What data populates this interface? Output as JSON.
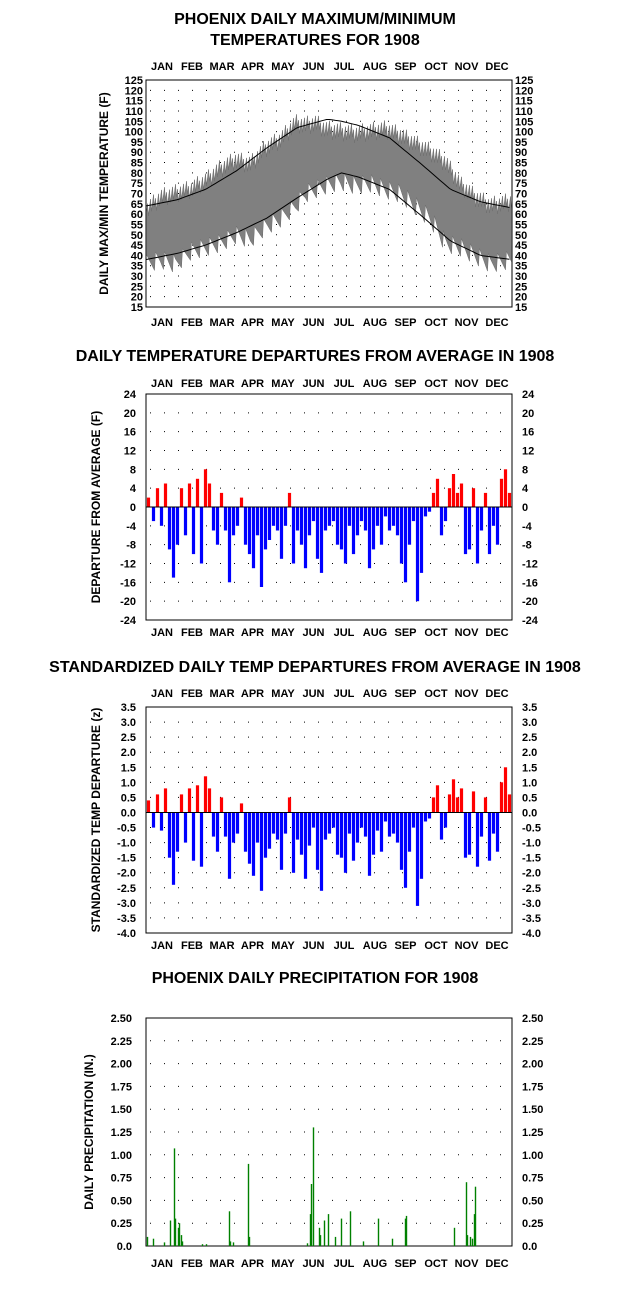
{
  "months": [
    "JAN",
    "FEB",
    "MAR",
    "APR",
    "MAY",
    "JUN",
    "JUL",
    "AUG",
    "SEP",
    "OCT",
    "NOV",
    "DEC"
  ],
  "chart_data": [
    {
      "type": "area",
      "title": "PHOENIX DAILY MAXIMUM/MINIMUM",
      "title2": "TEMPERATURES FOR 1908",
      "ylabel": "DAILY MAX/MIN TEMPERATURE (F)",
      "ylim": [
        15,
        125
      ],
      "yticks": [
        "15",
        "20",
        "25",
        "30",
        "35",
        "40",
        "45",
        "50",
        "55",
        "60",
        "65",
        "70",
        "75",
        "80",
        "85",
        "90",
        "95",
        "100",
        "105",
        "110",
        "115",
        "120",
        "125"
      ],
      "grid": true,
      "series": [
        {
          "name": "",
          "role": "normal_max",
          "x": [
            1,
            32,
            60,
            91,
            121,
            152,
            182,
            196,
            213,
            244,
            274,
            305,
            335,
            366
          ],
          "values": [
            64,
            67,
            72,
            81,
            92,
            102,
            106,
            105,
            103,
            97,
            85,
            72,
            66,
            63
          ]
        },
        {
          "name": "",
          "role": "normal_min",
          "x": [
            1,
            32,
            60,
            91,
            121,
            152,
            182,
            196,
            213,
            244,
            274,
            305,
            335,
            366
          ],
          "values": [
            38,
            41,
            45,
            51,
            58,
            68,
            77,
            80,
            78,
            72,
            60,
            47,
            40,
            38
          ]
        },
        {
          "name": "",
          "role": "daily_max_approx",
          "x": [
            1,
            15,
            30,
            45,
            60,
            75,
            90,
            105,
            120,
            135,
            150,
            160,
            170,
            180,
            195,
            210,
            225,
            240,
            255,
            270,
            285,
            300,
            315,
            330,
            345,
            366
          ],
          "values": [
            62,
            68,
            70,
            72,
            76,
            82,
            86,
            84,
            92,
            96,
            104,
            103,
            104,
            101,
            100,
            99,
            100,
            101,
            98,
            94,
            90,
            85,
            74,
            68,
            64,
            66
          ]
        },
        {
          "name": "",
          "role": "daily_min_approx",
          "x": [
            1,
            15,
            30,
            45,
            60,
            75,
            90,
            105,
            120,
            135,
            150,
            160,
            170,
            180,
            195,
            210,
            225,
            240,
            255,
            270,
            285,
            300,
            315,
            330,
            345,
            366
          ],
          "values": [
            36,
            38,
            36,
            42,
            44,
            46,
            50,
            48,
            54,
            58,
            64,
            70,
            72,
            74,
            76,
            74,
            75,
            72,
            70,
            64,
            58,
            46,
            44,
            40,
            36,
            38
          ]
        }
      ]
    },
    {
      "type": "bar",
      "title": "DAILY TEMPERATURE DEPARTURES FROM AVERAGE IN 1908",
      "ylabel": "DEPARTURE FROM AVERAGE (F)",
      "ylim": [
        -24,
        24
      ],
      "yticks": [
        "24",
        "20",
        "16",
        "12",
        "8",
        "4",
        "0",
        "-4",
        "-8",
        "-12",
        "-16",
        "-20",
        "-24"
      ],
      "grid": true,
      "x": [
        3,
        8,
        12,
        16,
        20,
        24,
        28,
        32,
        36,
        40,
        44,
        48,
        52,
        56,
        60,
        64,
        68,
        72,
        76,
        80,
        84,
        88,
        92,
        96,
        100,
        104,
        108,
        112,
        116,
        120,
        124,
        128,
        132,
        136,
        140,
        144,
        148,
        152,
        156,
        160,
        164,
        168,
        172,
        176,
        180,
        184,
        188,
        192,
        196,
        200,
        204,
        208,
        212,
        216,
        220,
        224,
        228,
        232,
        236,
        240,
        244,
        248,
        252,
        256,
        260,
        264,
        268,
        272,
        276,
        280,
        284,
        288,
        292,
        296,
        300,
        304,
        308,
        312,
        316,
        320,
        324,
        328,
        332,
        336,
        340,
        344,
        348,
        352,
        356,
        360,
        364
      ],
      "values": [
        2,
        -3,
        4,
        -4,
        5,
        -9,
        -15,
        -8,
        4,
        -6,
        5,
        -10,
        6,
        -12,
        8,
        5,
        -5,
        -8,
        3,
        -5,
        -16,
        -6,
        -4,
        2,
        -8,
        -10,
        -13,
        -6,
        -17,
        -9,
        -7,
        -4,
        -5,
        -11,
        -4,
        3,
        -12,
        -5,
        -8,
        -13,
        -6,
        -3,
        -11,
        -14,
        -5,
        -4,
        -3,
        -8,
        -9,
        -12,
        -4,
        -10,
        -6,
        -3,
        -5,
        -13,
        -9,
        -4,
        -8,
        -2,
        -5,
        -4,
        -6,
        -12,
        -16,
        -8,
        -3,
        -20,
        -14,
        -2,
        -1,
        3,
        6,
        -6,
        -3,
        4,
        7,
        3,
        5,
        -10,
        -9,
        4,
        -12,
        -5,
        3,
        -10,
        -4,
        -8,
        6,
        8,
        3
      ],
      "bar_colors": {
        "positive": "#ff0000",
        "negative": "#0000ff"
      }
    },
    {
      "type": "bar",
      "title": "STANDARDIZED DAILY TEMP DEPARTURES FROM AVERAGE IN 1908",
      "ylabel": "STANDARDIZED TEMP DEPARTURE (z)",
      "ylim": [
        -4.0,
        3.5
      ],
      "yticks": [
        "3.5",
        "3.0",
        "2.5",
        "2.0",
        "1.5",
        "1.0",
        "0.5",
        "0.0",
        "-0.5",
        "-1.0",
        "-1.5",
        "-2.0",
        "-2.5",
        "-3.0",
        "-3.5",
        "-4.0"
      ],
      "grid": true,
      "x": [
        3,
        8,
        12,
        16,
        20,
        24,
        28,
        32,
        36,
        40,
        44,
        48,
        52,
        56,
        60,
        64,
        68,
        72,
        76,
        80,
        84,
        88,
        92,
        96,
        100,
        104,
        108,
        112,
        116,
        120,
        124,
        128,
        132,
        136,
        140,
        144,
        148,
        152,
        156,
        160,
        164,
        168,
        172,
        176,
        180,
        184,
        188,
        192,
        196,
        200,
        204,
        208,
        212,
        216,
        220,
        224,
        228,
        232,
        236,
        240,
        244,
        248,
        252,
        256,
        260,
        264,
        268,
        272,
        276,
        280,
        284,
        288,
        292,
        296,
        300,
        304,
        308,
        312,
        316,
        320,
        324,
        328,
        332,
        336,
        340,
        344,
        348,
        352,
        356,
        360,
        364
      ],
      "values": [
        0.4,
        -0.5,
        0.6,
        -0.6,
        0.8,
        -1.5,
        -2.4,
        -1.3,
        0.6,
        -1.0,
        0.8,
        -1.6,
        0.9,
        -1.8,
        1.2,
        0.8,
        -0.8,
        -1.3,
        0.5,
        -0.8,
        -2.2,
        -1.0,
        -0.7,
        0.3,
        -1.3,
        -1.7,
        -2.1,
        -1.0,
        -2.6,
        -1.5,
        -1.2,
        -0.7,
        -0.9,
        -1.9,
        -0.7,
        0.5,
        -2.0,
        -0.9,
        -1.4,
        -2.2,
        -1.1,
        -0.5,
        -1.9,
        -2.6,
        -0.9,
        -0.7,
        -0.5,
        -1.4,
        -1.5,
        -2.0,
        -0.7,
        -1.6,
        -1.0,
        -0.5,
        -0.8,
        -2.1,
        -1.4,
        -0.6,
        -1.3,
        -0.3,
        -0.8,
        -0.7,
        -1.0,
        -1.9,
        -2.5,
        -1.3,
        -0.5,
        -3.1,
        -2.2,
        -0.3,
        -0.2,
        0.5,
        0.9,
        -0.9,
        -0.5,
        0.6,
        1.1,
        0.5,
        0.8,
        -1.5,
        -1.4,
        0.7,
        -1.8,
        -0.8,
        0.5,
        -1.6,
        -0.7,
        -1.3,
        1.0,
        1.5,
        0.6
      ],
      "bar_colors": {
        "positive": "#ff0000",
        "negative": "#0000ff"
      }
    },
    {
      "type": "bar",
      "title": "PHOENIX DAILY PRECIPITATION FOR 1908",
      "ylabel": "DAILY PRECIPITATION (IN.)",
      "ylim": [
        0,
        2.5
      ],
      "yticks": [
        "2.50",
        "2.25",
        "2.00",
        "1.75",
        "1.50",
        "1.25",
        "1.00",
        "0.75",
        "0.50",
        "0.25",
        "0.0"
      ],
      "grid": true,
      "x": [
        2,
        8,
        19,
        25,
        29,
        30,
        33,
        34,
        36,
        37,
        57,
        61,
        84,
        85,
        88,
        103,
        104,
        162,
        165,
        166,
        168,
        174,
        175,
        179,
        183,
        190,
        196,
        205,
        218,
        233,
        247,
        260,
        261,
        309,
        321,
        322,
        325,
        327,
        329,
        330
      ],
      "values": [
        0.1,
        0.08,
        0.04,
        0.28,
        1.07,
        0.3,
        0.2,
        0.25,
        0.12,
        0.05,
        0.02,
        0.02,
        0.38,
        0.05,
        0.04,
        0.9,
        0.1,
        0.03,
        0.35,
        0.68,
        1.3,
        0.2,
        0.12,
        0.28,
        0.35,
        0.1,
        0.3,
        0.38,
        0.05,
        0.3,
        0.08,
        0.3,
        0.33,
        0.2,
        0.7,
        0.12,
        0.1,
        0.08,
        0.35,
        0.65
      ],
      "bar_color": "#008000"
    }
  ]
}
